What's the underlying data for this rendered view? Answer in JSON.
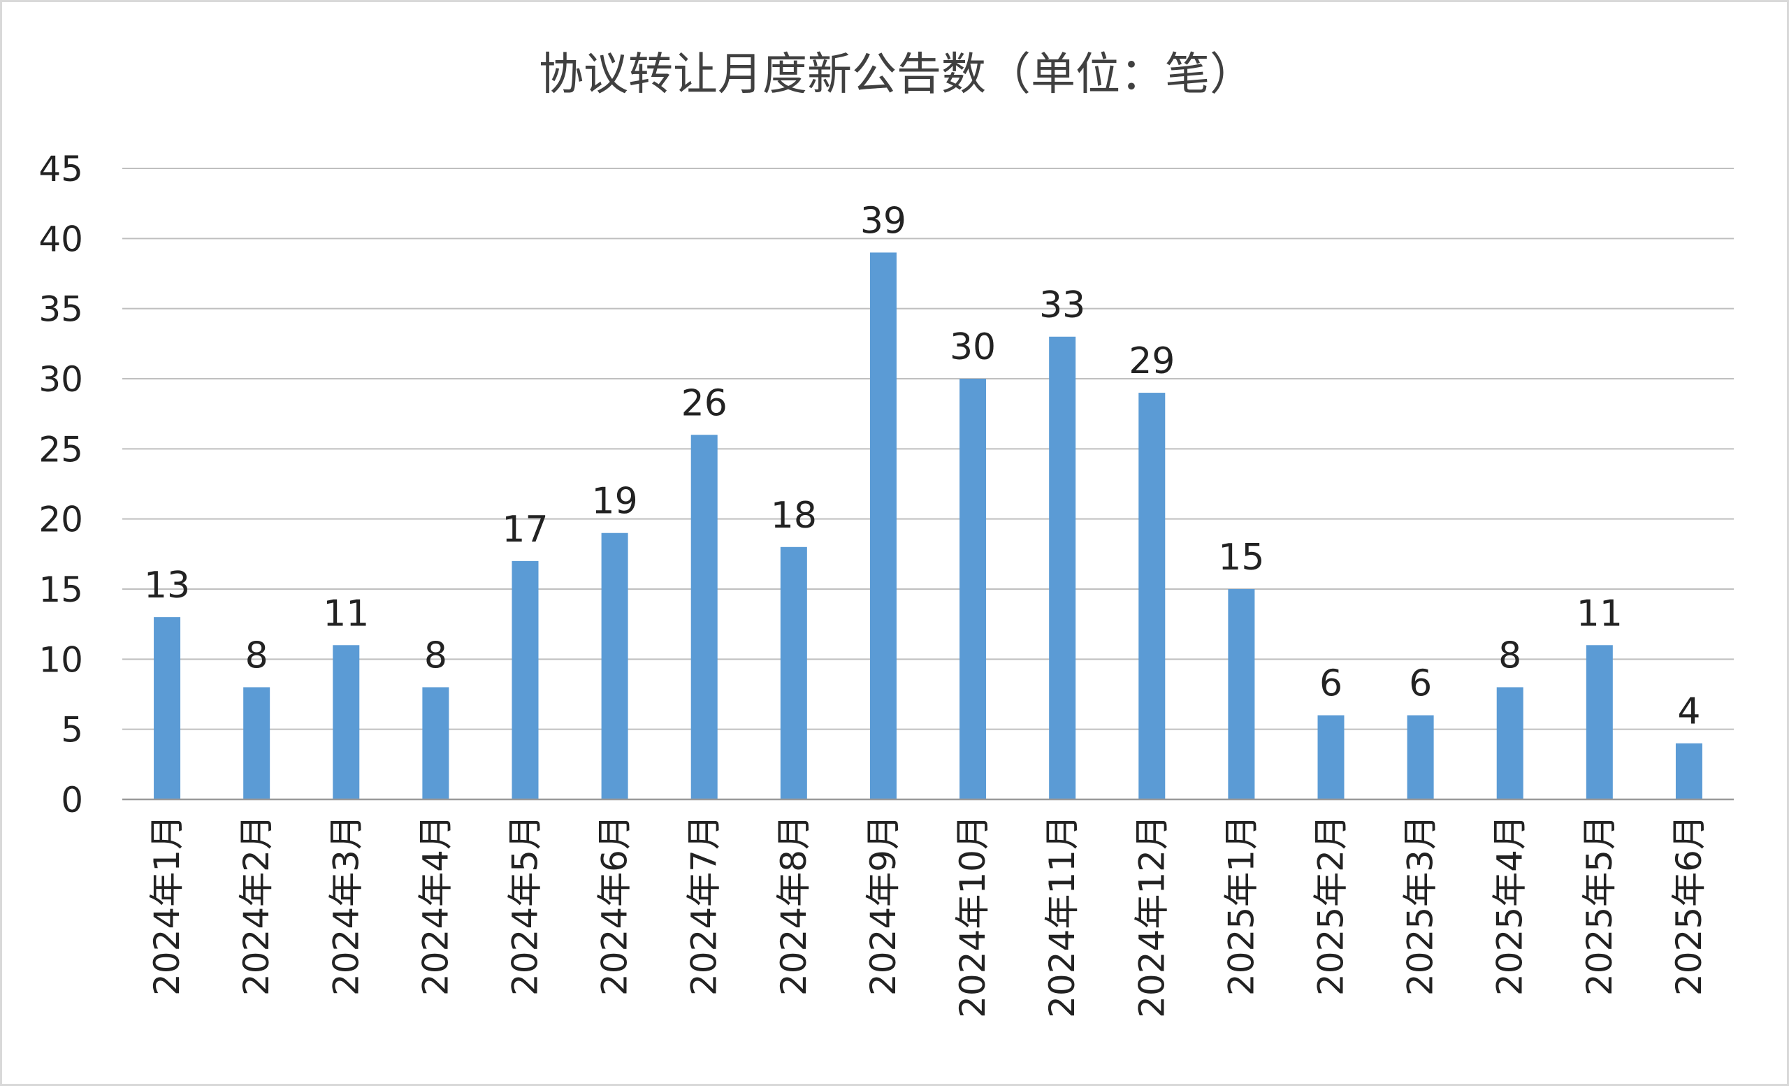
{
  "chart_data": {
    "type": "bar",
    "title": "协议转让月度新公告数（单位：笔）",
    "categories": [
      "2024年1月",
      "2024年2月",
      "2024年3月",
      "2024年4月",
      "2024年5月",
      "2024年6月",
      "2024年7月",
      "2024年8月",
      "2024年9月",
      "2024年10月",
      "2024年11月",
      "2024年12月",
      "2025年1月",
      "2025年2月",
      "2025年3月",
      "2025年4月",
      "2025年5月",
      "2025年6月"
    ],
    "values": [
      13,
      8,
      11,
      8,
      17,
      19,
      26,
      18,
      39,
      30,
      33,
      29,
      15,
      6,
      6,
      8,
      11,
      4
    ],
    "yticks": [
      0,
      5,
      10,
      15,
      20,
      25,
      30,
      35,
      40,
      45
    ],
    "ylim": [
      0,
      45
    ],
    "xlabel": "",
    "ylabel": "",
    "grid": true,
    "data_labels": true,
    "bar_color": "#5b9bd5"
  }
}
